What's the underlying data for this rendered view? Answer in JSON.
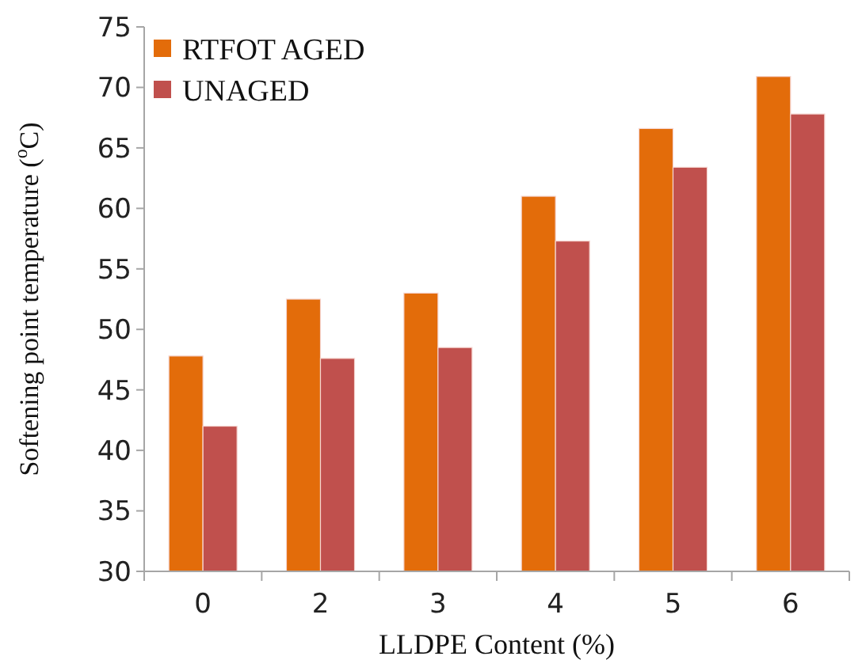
{
  "chart_data": {
    "type": "bar",
    "xlabel": "LLDPE Content (%)",
    "ylabel": "Softening point temperature ($^{o}$C)",
    "categories": [
      "0",
      "2",
      "3",
      "4",
      "5",
      "6"
    ],
    "series": [
      {
        "name": "RTFOT AGED",
        "color": "#e36c0a",
        "values": [
          47.8,
          52.5,
          53.0,
          61.0,
          66.6,
          70.9
        ]
      },
      {
        "name": "UNAGED",
        "color": "#c0504d",
        "values": [
          42.0,
          47.6,
          48.5,
          57.3,
          63.4,
          67.8
        ]
      }
    ],
    "ylim": [
      30,
      75
    ],
    "yticks": [
      30,
      35,
      40,
      45,
      50,
      55,
      60,
      65,
      70,
      75
    ],
    "grid": false,
    "legend": "top left"
  }
}
